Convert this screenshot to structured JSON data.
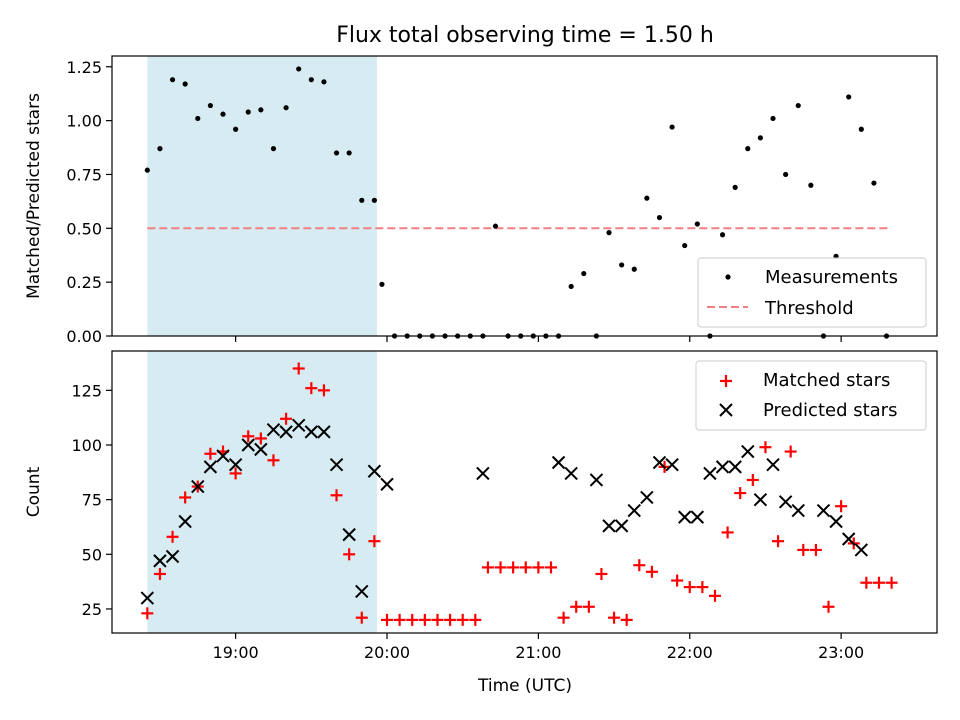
{
  "figure": {
    "title": "Flux total observing time = 1.50 h",
    "xlabel": "Time (UTC)"
  },
  "colors": {
    "shade": "#add8e6",
    "measurement": "#000000",
    "threshold": "#f08080",
    "matched": "#ff0000",
    "predicted": "#000000"
  },
  "chart_data": [
    {
      "type": "scatter",
      "title": "Flux total observing time = 1.50 h",
      "xlabel": "",
      "ylabel": "Matched/Predicted stars",
      "xlim": [
        "18:11",
        "23:38"
      ],
      "ylim": [
        0,
        1.3
      ],
      "xticks": [
        "19:00",
        "20:00",
        "21:00",
        "22:00",
        "23:00"
      ],
      "yticks": [
        0.0,
        0.25,
        0.5,
        0.75,
        1.0,
        1.25
      ],
      "ytick_labels": [
        "0.00",
        "0.25",
        "0.50",
        "0.75",
        "1.00",
        "1.25"
      ],
      "shaded_region": {
        "x_start": "18:25",
        "x_end": "19:56"
      },
      "legend": {
        "placement": "lower right",
        "entries": [
          "Measurements",
          "Threshold"
        ]
      },
      "series": [
        {
          "name": "Measurements",
          "marker": "dot",
          "x": [
            "18:25",
            "18:30",
            "18:35",
            "18:40",
            "18:45",
            "18:50",
            "18:55",
            "19:00",
            "19:05",
            "19:10",
            "19:15",
            "19:20",
            "19:25",
            "19:30",
            "19:35",
            "19:40",
            "19:45",
            "19:50",
            "19:55",
            "19:58",
            "20:03",
            "20:08",
            "20:13",
            "20:18",
            "20:23",
            "20:28",
            "20:33",
            "20:38",
            "20:43",
            "20:48",
            "20:53",
            "20:58",
            "21:03",
            "21:08",
            "21:13",
            "21:18",
            "21:23",
            "21:28",
            "21:33",
            "21:38",
            "21:43",
            "21:48",
            "21:53",
            "21:58",
            "22:03",
            "22:08",
            "22:13",
            "22:18",
            "22:23",
            "22:28",
            "22:33",
            "22:38",
            "22:43",
            "22:48",
            "22:53",
            "22:58",
            "23:03",
            "23:08",
            "23:13",
            "23:18"
          ],
          "values": [
            0.77,
            0.87,
            1.19,
            1.17,
            1.01,
            1.07,
            1.03,
            0.96,
            1.04,
            1.05,
            0.87,
            1.06,
            1.24,
            1.19,
            1.18,
            0.85,
            0.85,
            0.63,
            0.63,
            0.24,
            0.0,
            0.0,
            0.0,
            0.0,
            0.0,
            0.0,
            0.0,
            0.0,
            0.51,
            0.0,
            0.0,
            0.0,
            0.0,
            0.0,
            0.23,
            0.29,
            0.0,
            0.48,
            0.33,
            0.31,
            0.64,
            0.55,
            0.97,
            0.42,
            0.52,
            0.0,
            0.47,
            0.69,
            0.87,
            0.92,
            1.01,
            0.75,
            1.07,
            0.7,
            0.0,
            0.37,
            1.11,
            0.96,
            0.71,
            0.0
          ]
        },
        {
          "name": "Threshold",
          "type": "line",
          "x": [
            "18:25",
            "23:20"
          ],
          "values": [
            0.5,
            0.5
          ]
        }
      ]
    },
    {
      "type": "scatter",
      "title": "",
      "xlabel": "Time (UTC)",
      "ylabel": "Count",
      "xlim": [
        "18:11",
        "23:38"
      ],
      "ylim": [
        14,
        143
      ],
      "xticks": [
        "19:00",
        "20:00",
        "21:00",
        "22:00",
        "23:00"
      ],
      "yticks": [
        25,
        50,
        75,
        100,
        125
      ],
      "ytick_labels": [
        "25",
        "50",
        "75",
        "100",
        "125"
      ],
      "shaded_region": {
        "x_start": "18:25",
        "x_end": "19:56"
      },
      "legend": {
        "placement": "upper right",
        "entries": [
          "Matched stars",
          "Predicted stars"
        ]
      },
      "series": [
        {
          "name": "Matched stars",
          "marker": "plus",
          "x": [
            "18:25",
            "18:30",
            "18:35",
            "18:40",
            "18:45",
            "18:50",
            "18:55",
            "19:00",
            "19:05",
            "19:10",
            "19:15",
            "19:20",
            "19:25",
            "19:30",
            "19:35",
            "19:40",
            "19:45",
            "19:50",
            "19:55",
            "20:00",
            "20:05",
            "20:10",
            "20:15",
            "20:20",
            "20:25",
            "20:30",
            "20:35",
            "20:40",
            "20:45",
            "20:50",
            "20:55",
            "21:00",
            "21:05",
            "21:10",
            "21:15",
            "21:20",
            "21:25",
            "21:30",
            "21:35",
            "21:40",
            "21:45",
            "21:50",
            "21:55",
            "22:00",
            "22:05",
            "22:10",
            "22:15",
            "22:20",
            "22:25",
            "22:30",
            "22:35",
            "22:40",
            "22:45",
            "22:50",
            "22:55",
            "23:00",
            "23:05",
            "23:10",
            "23:15",
            "23:20"
          ],
          "values": [
            23,
            41,
            58,
            76,
            81,
            96,
            97,
            87,
            104,
            103,
            93,
            112,
            135,
            126,
            125,
            77,
            50,
            21,
            56,
            20,
            20,
            20,
            20,
            20,
            20,
            20,
            20,
            44,
            44,
            44,
            44,
            44,
            44,
            21,
            26,
            26,
            41,
            21,
            20,
            45,
            42,
            90,
            38,
            35,
            35,
            31,
            60,
            78,
            84,
            99,
            56,
            97,
            52,
            52,
            26,
            72,
            55,
            37,
            37,
            37
          ]
        },
        {
          "name": "Predicted stars",
          "marker": "x",
          "x": [
            "18:25",
            "18:30",
            "18:35",
            "18:40",
            "18:45",
            "18:50",
            "18:55",
            "19:00",
            "19:05",
            "19:10",
            "19:15",
            "19:20",
            "19:25",
            "19:30",
            "19:35",
            "19:40",
            "19:45",
            "19:50",
            "19:55",
            "20:00",
            "20:38",
            "21:08",
            "21:13",
            "21:23",
            "21:28",
            "21:33",
            "21:38",
            "21:43",
            "21:48",
            "21:53",
            "21:58",
            "22:03",
            "22:08",
            "22:13",
            "22:18",
            "22:23",
            "22:28",
            "22:33",
            "22:38",
            "22:43",
            "22:53",
            "22:58",
            "23:03",
            "23:08"
          ],
          "values": [
            30,
            47,
            49,
            65,
            81,
            90,
            95,
            91,
            100,
            98,
            107,
            106,
            109,
            106,
            106,
            91,
            59,
            33,
            88,
            82,
            87,
            92,
            87,
            84,
            63,
            63,
            70,
            76,
            92,
            91,
            67,
            67,
            87,
            90,
            90,
            97,
            75,
            91,
            74,
            70,
            70,
            65,
            57,
            52
          ]
        }
      ]
    }
  ]
}
